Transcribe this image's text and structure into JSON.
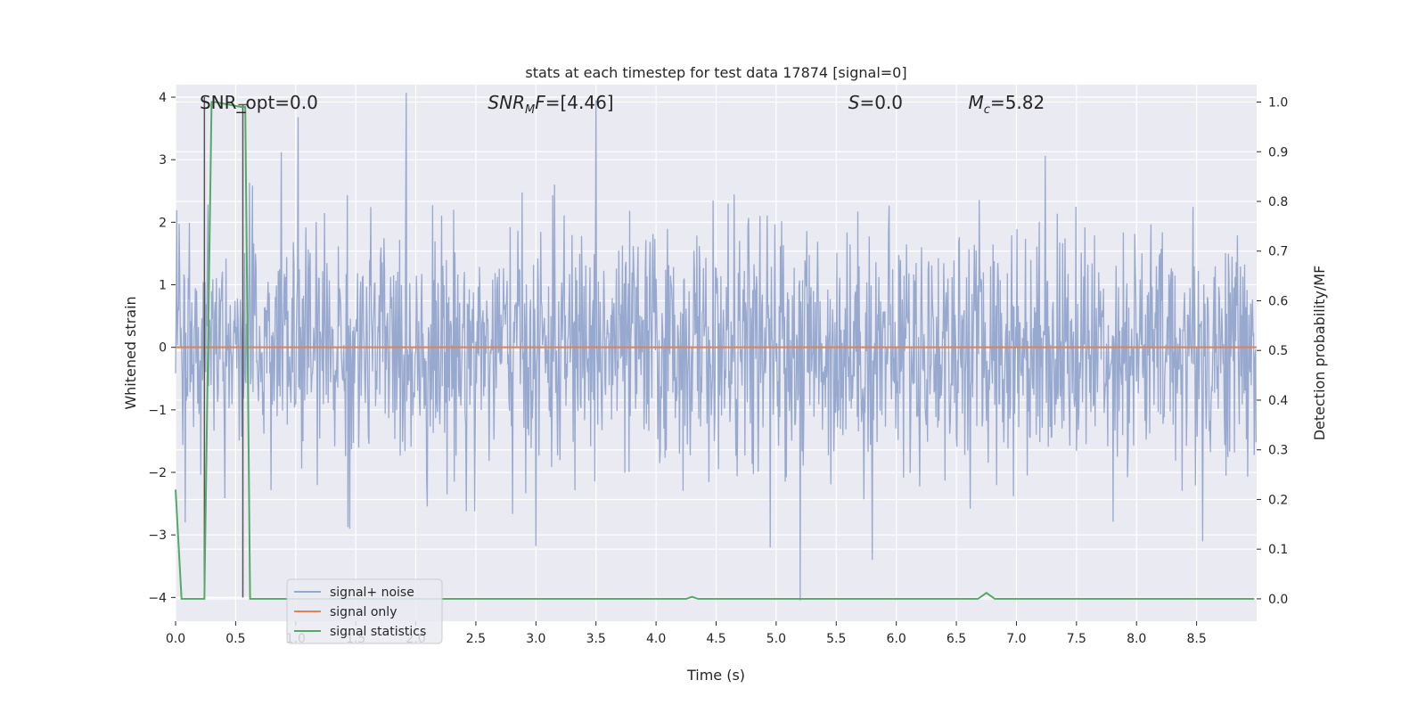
{
  "chart_data": {
    "type": "line",
    "title": "stats at each timestep for test data 17874 [signal=0]",
    "xlabel": "Time (s)",
    "ylabel": "Whitened strain",
    "y2label": "Detection probability/MF",
    "xlim": [
      0.0,
      9.0
    ],
    "ylim": [
      -4.38,
      4.2
    ],
    "y2lim": [
      -0.045,
      1.035
    ],
    "x_ticks": [
      0.0,
      0.5,
      1.0,
      1.5,
      2.0,
      2.5,
      3.0,
      3.5,
      4.0,
      4.5,
      5.0,
      5.5,
      6.0,
      6.5,
      7.0,
      7.5,
      8.0,
      8.5
    ],
    "x_tick_labels": [
      "0.0",
      "0.5",
      "1.0",
      "1.5",
      "2.0",
      "2.5",
      "3.0",
      "3.5",
      "4.0",
      "4.5",
      "5.0",
      "5.5",
      "6.0",
      "6.5",
      "7.0",
      "7.5",
      "8.0",
      "8.5"
    ],
    "y_ticks": [
      4,
      3,
      2,
      1,
      0,
      -1,
      -2,
      -3,
      -4
    ],
    "y_tick_labels": [
      "4",
      "3",
      "2",
      "1",
      "0",
      "−1",
      "−2",
      "−3",
      "−4"
    ],
    "y2_ticks": [
      1.0,
      0.9,
      0.8,
      0.7,
      0.6,
      0.5,
      0.4,
      0.3,
      0.2,
      0.1,
      0.0
    ],
    "y2_tick_labels": [
      "1.0",
      "0.9",
      "0.8",
      "0.7",
      "0.6",
      "0.5",
      "0.4",
      "0.3",
      "0.2",
      "0.1",
      "0.0"
    ],
    "grid": true,
    "legend_position": "lower-left",
    "annotations": [
      {
        "text": "SNR_opt=0.0",
        "x": 0.2,
        "y": 3.9
      },
      {
        "text": "SNR_MF=[4.46]",
        "x": 2.6,
        "y": 3.9
      },
      {
        "text": "S=0.0",
        "x": 5.6,
        "y": 3.9
      },
      {
        "text": "M_c=5.82",
        "x": 6.6,
        "y": 3.9
      }
    ],
    "series": [
      {
        "name": "signal+ noise",
        "axis": "left",
        "color": "#98a9cf",
        "sample_rate_hz": 200,
        "amplitude_sigma": 0.95,
        "extreme_peaks": [
          {
            "x": 0.88,
            "y": 3.12
          },
          {
            "x": 1.02,
            "y": 3.68
          },
          {
            "x": 3.5,
            "y": 3.95
          },
          {
            "x": 7.24,
            "y": 3.06
          },
          {
            "x": 3.0,
            "y": -3.18
          },
          {
            "x": 4.95,
            "y": -3.2
          },
          {
            "x": 5.2,
            "y": -4.05
          },
          {
            "x": 5.8,
            "y": -3.4
          },
          {
            "x": 8.55,
            "y": -3.1
          },
          {
            "x": 1.45,
            "y": -2.9
          },
          {
            "x": 0.08,
            "y": -2.8
          }
        ]
      },
      {
        "name": "signal only",
        "axis": "left",
        "color": "#dd8452",
        "x": [
          0.0,
          9.0
        ],
        "y": [
          0.0,
          0.0
        ]
      },
      {
        "name": "signal statistics",
        "axis": "right",
        "color": "#55a868",
        "x": [
          0.0,
          0.05,
          0.18,
          0.24,
          0.3,
          0.33,
          0.55,
          0.58,
          0.62,
          4.25,
          4.3,
          4.35,
          6.68,
          6.75,
          6.82,
          8.98
        ],
        "y": [
          0.22,
          0.0,
          0.0,
          0.0,
          1.0,
          1.0,
          0.99,
          0.99,
          0.0,
          0.0,
          0.004,
          0.0,
          0.0,
          0.012,
          0.0,
          0.0
        ]
      }
    ],
    "segments": [
      {
        "name": "black-marker-left",
        "x": 0.24,
        "y_start": 4.0,
        "y_end": -4.0,
        "color": "#555555"
      },
      {
        "name": "black-marker-right",
        "x": 0.56,
        "y_start": 3.88,
        "y_end": -4.0,
        "color": "#555555"
      }
    ]
  },
  "legend": {
    "items": [
      {
        "label": "signal+ noise",
        "color": "#98a9cf"
      },
      {
        "label": "signal only",
        "color": "#dd8452"
      },
      {
        "label": "signal statistics",
        "color": "#55a868"
      }
    ]
  },
  "colors": {
    "plot_background": "#eaeaf2",
    "grid": "#ffffff"
  }
}
